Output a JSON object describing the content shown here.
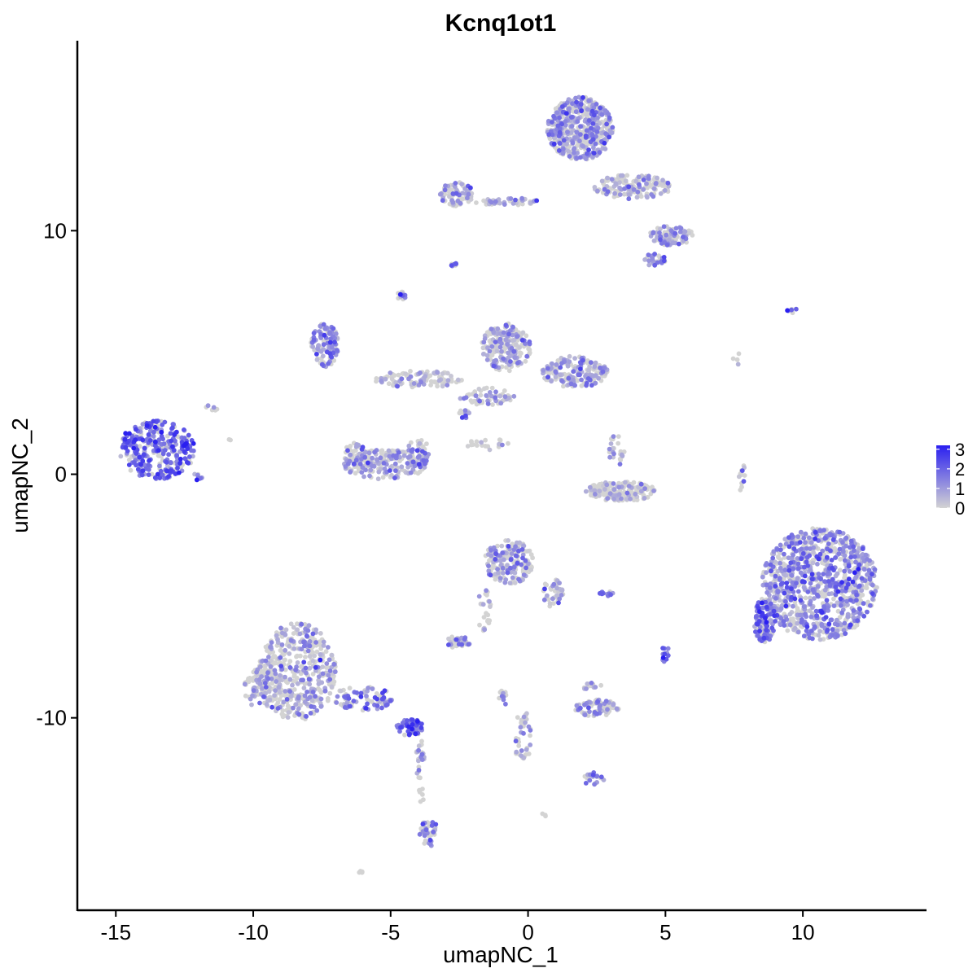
{
  "chart_data": {
    "type": "scatter",
    "title": "Kcnq1ot1",
    "xlabel": "umapNC_1",
    "ylabel": "umapNC_2",
    "xlim": [
      -16.4,
      14.5
    ],
    "ylim": [
      -17.9,
      17.8
    ],
    "x_ticks": [
      -15,
      -10,
      -5,
      0,
      5,
      10
    ],
    "x_tick_labels": [
      "-15",
      "-10",
      "-5",
      "0",
      "5",
      "10"
    ],
    "y_ticks": [
      -10,
      0,
      10
    ],
    "y_tick_labels": [
      "-10",
      "0",
      "10"
    ],
    "grid": false,
    "color_scale": {
      "low_color": "#d3d3d3",
      "high_color": "#2a1ff0",
      "min": 0,
      "max": 3.2,
      "ticks": [
        0,
        1,
        2,
        3
      ],
      "tick_labels": [
        "0",
        "1",
        "2",
        "3"
      ],
      "position": "right"
    },
    "clusters": [
      {
        "cx": -13.5,
        "cy": 1.0,
        "rx": 1.4,
        "ry": 1.2,
        "n": 320,
        "mean_expr": 1.9
      },
      {
        "cx": -12.0,
        "cy": -0.1,
        "rx": 0.25,
        "ry": 0.15,
        "n": 8,
        "mean_expr": 1.6
      },
      {
        "cx": -11.5,
        "cy": 2.7,
        "rx": 0.25,
        "ry": 0.15,
        "n": 6,
        "mean_expr": 1.0
      },
      {
        "cx": 1.9,
        "cy": 14.2,
        "rx": 1.2,
        "ry": 1.3,
        "n": 520,
        "mean_expr": 0.9
      },
      {
        "cx": 3.8,
        "cy": 11.8,
        "rx": 1.4,
        "ry": 0.5,
        "n": 160,
        "mean_expr": 0.6
      },
      {
        "cx": 5.2,
        "cy": 9.8,
        "rx": 0.8,
        "ry": 0.4,
        "n": 90,
        "mean_expr": 0.8
      },
      {
        "cx": -2.6,
        "cy": 11.5,
        "rx": 0.6,
        "ry": 0.5,
        "n": 90,
        "mean_expr": 0.9
      },
      {
        "cx": -0.8,
        "cy": 11.2,
        "rx": 1.2,
        "ry": 0.15,
        "n": 45,
        "mean_expr": 0.7
      },
      {
        "cx": 4.6,
        "cy": 8.8,
        "rx": 0.4,
        "ry": 0.25,
        "n": 25,
        "mean_expr": 1.3
      },
      {
        "cx": -2.7,
        "cy": 8.6,
        "rx": 0.12,
        "ry": 0.15,
        "n": 8,
        "mean_expr": 1.2
      },
      {
        "cx": -4.6,
        "cy": 7.3,
        "rx": 0.15,
        "ry": 0.25,
        "n": 12,
        "mean_expr": 1.4
      },
      {
        "cx": -7.4,
        "cy": 5.3,
        "rx": 0.5,
        "ry": 0.9,
        "n": 120,
        "mean_expr": 1.2
      },
      {
        "cx": -4.0,
        "cy": 3.9,
        "rx": 1.6,
        "ry": 0.35,
        "n": 110,
        "mean_expr": 0.4
      },
      {
        "cx": -0.8,
        "cy": 5.2,
        "rx": 0.9,
        "ry": 1.0,
        "n": 200,
        "mean_expr": 0.9
      },
      {
        "cx": 1.7,
        "cy": 4.2,
        "rx": 1.2,
        "ry": 0.65,
        "n": 180,
        "mean_expr": 0.9
      },
      {
        "cx": -1.5,
        "cy": 3.2,
        "rx": 1.0,
        "ry": 0.35,
        "n": 60,
        "mean_expr": 0.5
      },
      {
        "cx": -2.3,
        "cy": 2.5,
        "rx": 0.2,
        "ry": 0.2,
        "n": 14,
        "mean_expr": 1.5
      },
      {
        "cx": -5.2,
        "cy": 0.4,
        "rx": 1.5,
        "ry": 0.6,
        "n": 170,
        "mean_expr": 0.9
      },
      {
        "cx": -6.3,
        "cy": 0.8,
        "rx": 0.4,
        "ry": 0.5,
        "n": 50,
        "mean_expr": 0.9
      },
      {
        "cx": -4.0,
        "cy": 0.9,
        "rx": 0.4,
        "ry": 0.6,
        "n": 50,
        "mean_expr": 1.0
      },
      {
        "cx": 3.4,
        "cy": -0.7,
        "rx": 1.3,
        "ry": 0.4,
        "n": 180,
        "mean_expr": 0.3
      },
      {
        "cx": 3.2,
        "cy": 0.9,
        "rx": 0.3,
        "ry": 0.7,
        "n": 25,
        "mean_expr": 0.5
      },
      {
        "cx": -1.4,
        "cy": 1.2,
        "rx": 0.8,
        "ry": 0.3,
        "n": 20,
        "mean_expr": 0.3
      },
      {
        "cx": 10.6,
        "cy": -4.5,
        "rx": 2.1,
        "ry": 2.3,
        "n": 1000,
        "mean_expr": 1.1
      },
      {
        "cx": 8.6,
        "cy": -6.0,
        "rx": 0.4,
        "ry": 0.9,
        "n": 120,
        "mean_expr": 1.6
      },
      {
        "cx": 7.8,
        "cy": -0.2,
        "rx": 0.15,
        "ry": 0.6,
        "n": 12,
        "mean_expr": 1.0
      },
      {
        "cx": 9.6,
        "cy": 6.7,
        "rx": 0.3,
        "ry": 0.1,
        "n": 6,
        "mean_expr": 2.0
      },
      {
        "cx": -0.7,
        "cy": -3.6,
        "rx": 0.9,
        "ry": 0.9,
        "n": 180,
        "mean_expr": 0.9
      },
      {
        "cx": 0.9,
        "cy": -4.9,
        "rx": 0.4,
        "ry": 0.6,
        "n": 40,
        "mean_expr": 0.9
      },
      {
        "cx": -1.6,
        "cy": -5.6,
        "rx": 0.25,
        "ry": 0.9,
        "n": 25,
        "mean_expr": 0.3
      },
      {
        "cx": -2.6,
        "cy": -6.9,
        "rx": 0.5,
        "ry": 0.25,
        "n": 40,
        "mean_expr": 0.8
      },
      {
        "cx": 2.8,
        "cy": -4.9,
        "rx": 0.3,
        "ry": 0.1,
        "n": 10,
        "mean_expr": 1.5
      },
      {
        "cx": 5.0,
        "cy": -7.4,
        "rx": 0.15,
        "ry": 0.35,
        "n": 12,
        "mean_expr": 1.6
      },
      {
        "cx": 2.5,
        "cy": -9.6,
        "rx": 0.8,
        "ry": 0.35,
        "n": 90,
        "mean_expr": 1.0
      },
      {
        "cx": 2.3,
        "cy": -8.7,
        "rx": 0.4,
        "ry": 0.15,
        "n": 12,
        "mean_expr": 0.8
      },
      {
        "cx": -0.2,
        "cy": -10.8,
        "rx": 0.3,
        "ry": 1.2,
        "n": 40,
        "mean_expr": 0.6
      },
      {
        "cx": -0.9,
        "cy": -9.2,
        "rx": 0.15,
        "ry": 0.4,
        "n": 10,
        "mean_expr": 1.2
      },
      {
        "cx": 2.4,
        "cy": -12.5,
        "rx": 0.4,
        "ry": 0.3,
        "n": 20,
        "mean_expr": 1.5
      },
      {
        "cx": -8.4,
        "cy": -8.1,
        "rx": 1.4,
        "ry": 2.0,
        "n": 450,
        "mean_expr": 0.7
      },
      {
        "cx": -9.7,
        "cy": -8.8,
        "rx": 0.7,
        "ry": 0.8,
        "n": 90,
        "mean_expr": 0.6
      },
      {
        "cx": -6.0,
        "cy": -9.2,
        "rx": 1.1,
        "ry": 0.5,
        "n": 90,
        "mean_expr": 1.2
      },
      {
        "cx": -4.3,
        "cy": -10.4,
        "rx": 0.5,
        "ry": 0.35,
        "n": 60,
        "mean_expr": 1.8
      },
      {
        "cx": -3.9,
        "cy": -12.2,
        "rx": 0.2,
        "ry": 1.3,
        "n": 30,
        "mean_expr": 0.8
      },
      {
        "cx": -3.6,
        "cy": -14.7,
        "rx": 0.35,
        "ry": 0.6,
        "n": 40,
        "mean_expr": 1.3
      },
      {
        "cx": -6.1,
        "cy": -16.3,
        "rx": 0.1,
        "ry": 0.1,
        "n": 4,
        "mean_expr": 1.0
      },
      {
        "cx": 0.6,
        "cy": -14.0,
        "rx": 0.1,
        "ry": 0.1,
        "n": 3,
        "mean_expr": 0.5
      },
      {
        "cx": -10.9,
        "cy": 1.4,
        "rx": 0.08,
        "ry": 0.08,
        "n": 2,
        "mean_expr": 0.0
      },
      {
        "cx": 7.6,
        "cy": 4.7,
        "rx": 0.2,
        "ry": 0.3,
        "n": 4,
        "mean_expr": 0.1
      }
    ]
  }
}
